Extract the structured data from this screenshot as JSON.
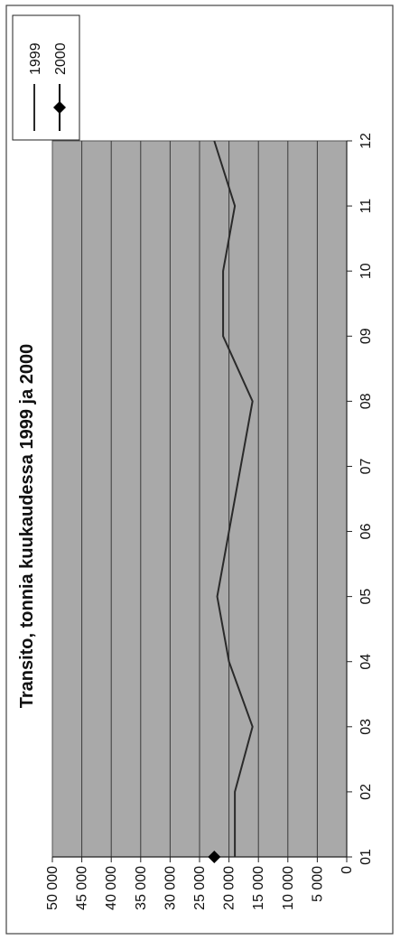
{
  "chart_data": {
    "type": "line",
    "title": "Transito, tonnia kuukaudessa 1999 ja 2000",
    "xlabel": "",
    "ylabel": "",
    "categories": [
      "01",
      "02",
      "03",
      "04",
      "05",
      "06",
      "07",
      "08",
      "09",
      "10",
      "11",
      "12"
    ],
    "y_ticks": [
      "0",
      "5 000",
      "10 000",
      "15 000",
      "20 000",
      "25 000",
      "30 000",
      "35 000",
      "40 000",
      "45 000",
      "50 000"
    ],
    "ylim": [
      0,
      50000
    ],
    "grid": true,
    "legend_position": "top-right",
    "series": [
      {
        "name": "1999",
        "values": [
          19000,
          19000,
          16000,
          20000,
          22000,
          20000,
          18000,
          16000,
          21000,
          21000,
          19000,
          22500
        ],
        "color": "#2a2a2a",
        "marker": "none"
      },
      {
        "name": "2000",
        "values": [
          22500,
          null,
          null,
          null,
          null,
          null,
          null,
          null,
          null,
          null,
          null,
          null
        ],
        "color": "#000000",
        "marker": "diamond"
      }
    ]
  }
}
